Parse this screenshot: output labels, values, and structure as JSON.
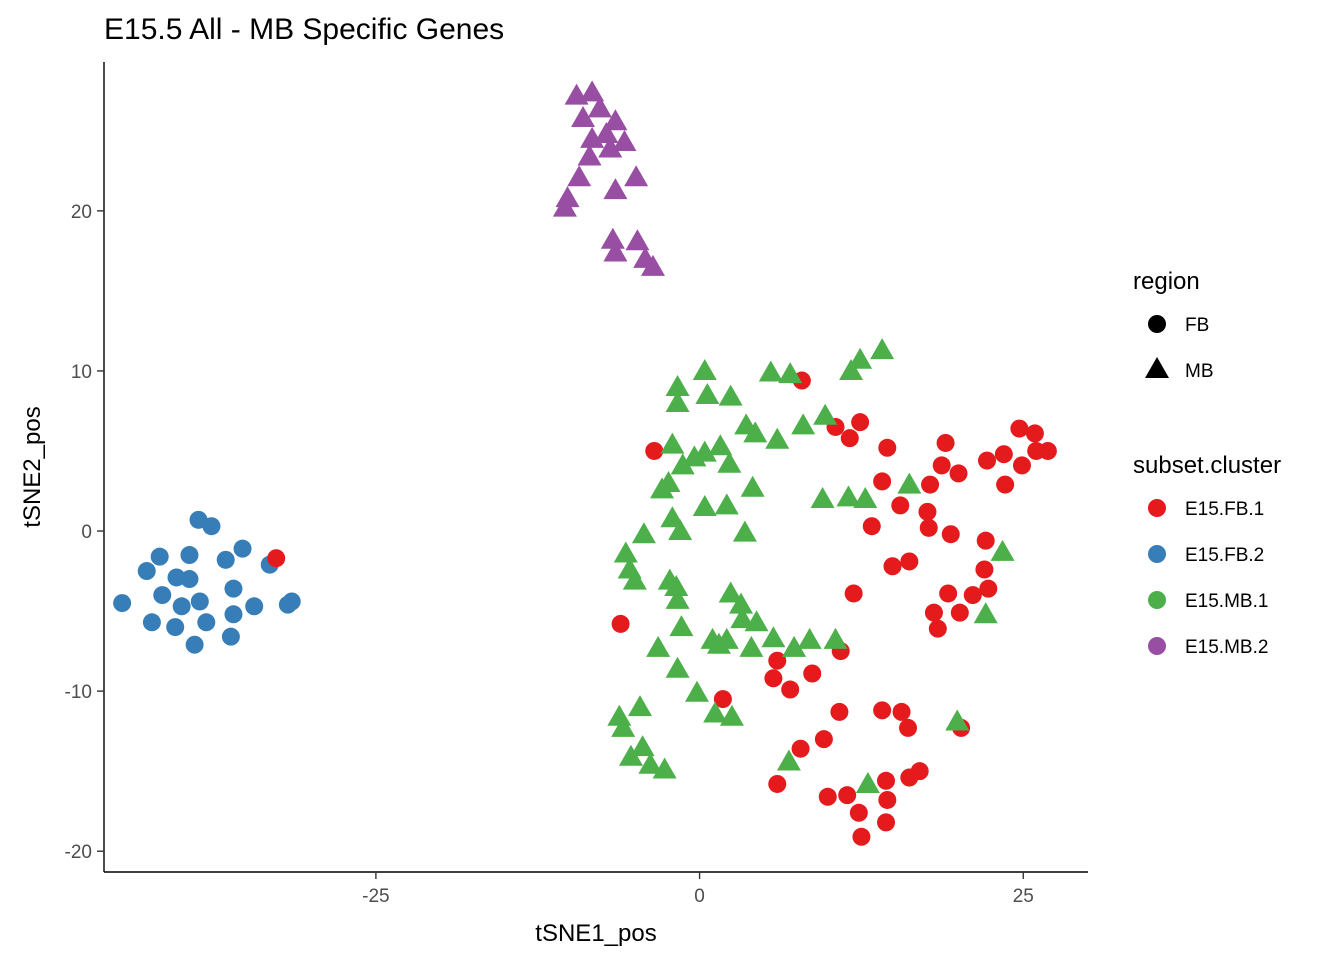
{
  "chart_data": {
    "type": "scatter",
    "title": "E15.5 All - MB Specific Genes",
    "xlabel": "tSNE1_pos",
    "ylabel": "tSNE2_pos",
    "xlim": [
      -46,
      30
    ],
    "ylim": [
      -21.3,
      29.3
    ],
    "xticks": [
      -25,
      0,
      25
    ],
    "xtick_labels": [
      "-25",
      "0",
      "25"
    ],
    "yticks": [
      -20,
      -10,
      0,
      10,
      20
    ],
    "ytick_labels": [
      "-20",
      "-10",
      "0",
      "10",
      "20"
    ],
    "grid": false,
    "legend_position": "right",
    "shape_legend": {
      "title": "region",
      "items": [
        {
          "label": "FB",
          "shape": "circle"
        },
        {
          "label": "MB",
          "shape": "triangle"
        }
      ]
    },
    "color_legend": {
      "title": "subset.cluster",
      "items": [
        {
          "label": "E15.FB.1",
          "color": "#e41a1c"
        },
        {
          "label": "E15.FB.2",
          "color": "#377eb8"
        },
        {
          "label": "E15.MB.1",
          "color": "#4daf4a"
        },
        {
          "label": "E15.MB.2",
          "color": "#984ea3"
        }
      ]
    },
    "series": [
      {
        "name": "E15.FB.2",
        "shape": "circle",
        "color": "#377eb8",
        "points": [
          [
            -38.7,
            0.7
          ],
          [
            -37.7,
            0.3
          ],
          [
            -35.3,
            -1.1
          ],
          [
            -39.4,
            -1.5
          ],
          [
            -41.7,
            -1.6
          ],
          [
            -36.6,
            -1.8
          ],
          [
            -33.2,
            -2.1
          ],
          [
            -42.7,
            -2.5
          ],
          [
            -40.4,
            -2.9
          ],
          [
            -39.4,
            -3.0
          ],
          [
            -36.0,
            -3.6
          ],
          [
            -41.5,
            -4.0
          ],
          [
            -38.6,
            -4.4
          ],
          [
            -31.5,
            -4.4
          ],
          [
            -44.6,
            -4.5
          ],
          [
            -40.0,
            -4.7
          ],
          [
            -34.4,
            -4.7
          ],
          [
            -31.8,
            -4.6
          ],
          [
            -36.0,
            -5.2
          ],
          [
            -42.3,
            -5.7
          ],
          [
            -40.5,
            -6.0
          ],
          [
            -38.1,
            -5.7
          ],
          [
            -36.2,
            -6.6
          ],
          [
            -39.0,
            -7.1
          ]
        ]
      },
      {
        "name": "E15.FB.1",
        "shape": "circle",
        "color": "#e41a1c",
        "points": [
          [
            -32.7,
            -1.7
          ],
          [
            -6.1,
            -5.8
          ],
          [
            -3.5,
            5.0
          ],
          [
            7.9,
            9.4
          ],
          [
            10.5,
            6.5
          ],
          [
            11.6,
            5.8
          ],
          [
            12.4,
            6.8
          ],
          [
            14.5,
            5.2
          ],
          [
            19.0,
            5.5
          ],
          [
            18.7,
            4.1
          ],
          [
            20.0,
            3.6
          ],
          [
            17.8,
            2.9
          ],
          [
            14.1,
            3.1
          ],
          [
            15.5,
            1.6
          ],
          [
            17.6,
            1.2
          ],
          [
            17.7,
            0.2
          ],
          [
            13.3,
            0.3
          ],
          [
            19.4,
            -0.2
          ],
          [
            22.1,
            -0.6
          ],
          [
            14.9,
            -2.2
          ],
          [
            16.2,
            -1.9
          ],
          [
            11.9,
            -3.9
          ],
          [
            22.0,
            -2.4
          ],
          [
            19.2,
            -3.9
          ],
          [
            21.1,
            -4.0
          ],
          [
            22.3,
            -3.6
          ],
          [
            18.1,
            -5.1
          ],
          [
            20.1,
            -5.1
          ],
          [
            18.4,
            -6.1
          ],
          [
            22.2,
            4.4
          ],
          [
            23.5,
            4.8
          ],
          [
            24.7,
            6.4
          ],
          [
            25.9,
            6.1
          ],
          [
            24.9,
            4.1
          ],
          [
            26.0,
            5.0
          ],
          [
            26.9,
            5.0
          ],
          [
            23.6,
            2.9
          ],
          [
            10.9,
            -7.5
          ],
          [
            6.0,
            -8.1
          ],
          [
            5.7,
            -9.2
          ],
          [
            7.0,
            -9.9
          ],
          [
            8.7,
            -8.9
          ],
          [
            1.8,
            -10.5
          ],
          [
            10.8,
            -11.3
          ],
          [
            14.1,
            -11.2
          ],
          [
            15.6,
            -11.3
          ],
          [
            16.1,
            -12.3
          ],
          [
            20.2,
            -12.3
          ],
          [
            9.6,
            -13.0
          ],
          [
            7.8,
            -13.6
          ],
          [
            6.0,
            -15.8
          ],
          [
            14.4,
            -15.6
          ],
          [
            16.2,
            -15.4
          ],
          [
            17.0,
            -15.0
          ],
          [
            9.9,
            -16.6
          ],
          [
            11.4,
            -16.5
          ],
          [
            14.5,
            -16.8
          ],
          [
            12.3,
            -17.6
          ],
          [
            14.4,
            -18.2
          ],
          [
            12.5,
            -19.1
          ]
        ]
      },
      {
        "name": "E15.MB.2",
        "shape": "triangle",
        "color": "#984ea3",
        "points": [
          [
            -9.5,
            27.2
          ],
          [
            -8.3,
            27.4
          ],
          [
            -7.7,
            26.4
          ],
          [
            -9.0,
            25.8
          ],
          [
            -6.5,
            25.6
          ],
          [
            -7.2,
            24.8
          ],
          [
            -8.3,
            24.5
          ],
          [
            -5.8,
            24.3
          ],
          [
            -6.9,
            23.9
          ],
          [
            -8.5,
            23.4
          ],
          [
            -9.3,
            22.1
          ],
          [
            -4.9,
            22.1
          ],
          [
            -6.5,
            21.3
          ],
          [
            -10.2,
            20.8
          ],
          [
            -10.4,
            20.2
          ],
          [
            -6.7,
            18.2
          ],
          [
            -4.8,
            18.1
          ],
          [
            -6.5,
            17.4
          ],
          [
            -4.2,
            17.0
          ],
          [
            -3.6,
            16.5
          ]
        ]
      },
      {
        "name": "E15.MB.1",
        "shape": "triangle",
        "color": "#4daf4a",
        "points": [
          [
            0.4,
            10.0
          ],
          [
            5.5,
            9.9
          ],
          [
            7.0,
            9.8
          ],
          [
            -1.7,
            9.0
          ],
          [
            11.7,
            10.0
          ],
          [
            12.4,
            10.7
          ],
          [
            14.1,
            11.3
          ],
          [
            -1.7,
            8.0
          ],
          [
            0.6,
            8.5
          ],
          [
            2.4,
            8.4
          ],
          [
            3.6,
            6.6
          ],
          [
            4.3,
            6.1
          ],
          [
            6.0,
            5.7
          ],
          [
            8.0,
            6.6
          ],
          [
            9.7,
            7.2
          ],
          [
            -2.1,
            5.4
          ],
          [
            -0.4,
            4.6
          ],
          [
            0.4,
            4.9
          ],
          [
            1.6,
            5.3
          ],
          [
            2.3,
            4.2
          ],
          [
            -1.3,
            4.1
          ],
          [
            -2.4,
            3.0
          ],
          [
            -2.9,
            2.6
          ],
          [
            4.1,
            2.7
          ],
          [
            9.5,
            2.0
          ],
          [
            11.5,
            2.1
          ],
          [
            12.8,
            2.0
          ],
          [
            16.2,
            2.9
          ],
          [
            -2.1,
            0.8
          ],
          [
            0.4,
            1.5
          ],
          [
            2.1,
            1.6
          ],
          [
            -1.5,
            0.0
          ],
          [
            3.5,
            -0.1
          ],
          [
            -5.7,
            -1.4
          ],
          [
            -4.3,
            -0.2
          ],
          [
            -5.4,
            -2.4
          ],
          [
            -5.0,
            -3.1
          ],
          [
            -2.3,
            -3.1
          ],
          [
            -1.8,
            -3.5
          ],
          [
            -1.7,
            -4.3
          ],
          [
            2.4,
            -3.9
          ],
          [
            3.2,
            -4.6
          ],
          [
            3.3,
            -5.5
          ],
          [
            4.4,
            -5.7
          ],
          [
            23.4,
            -1.3
          ],
          [
            22.1,
            -5.2
          ],
          [
            -1.4,
            -6.0
          ],
          [
            1.0,
            -6.8
          ],
          [
            2.1,
            -6.8
          ],
          [
            5.7,
            -6.7
          ],
          [
            -3.2,
            -7.3
          ],
          [
            1.5,
            -7.1
          ],
          [
            4.0,
            -7.3
          ],
          [
            7.3,
            -7.3
          ],
          [
            8.5,
            -6.8
          ],
          [
            10.5,
            -6.8
          ],
          [
            -1.7,
            -8.6
          ],
          [
            -0.2,
            -10.1
          ],
          [
            -6.2,
            -11.6
          ],
          [
            -4.6,
            -11.0
          ],
          [
            -5.9,
            -12.3
          ],
          [
            1.2,
            -11.4
          ],
          [
            2.5,
            -11.6
          ],
          [
            -4.4,
            -13.5
          ],
          [
            -5.3,
            -14.1
          ],
          [
            -3.8,
            -14.6
          ],
          [
            -2.7,
            -14.9
          ],
          [
            6.9,
            -14.4
          ],
          [
            13.0,
            -15.8
          ],
          [
            19.9,
            -11.9
          ]
        ]
      }
    ]
  }
}
